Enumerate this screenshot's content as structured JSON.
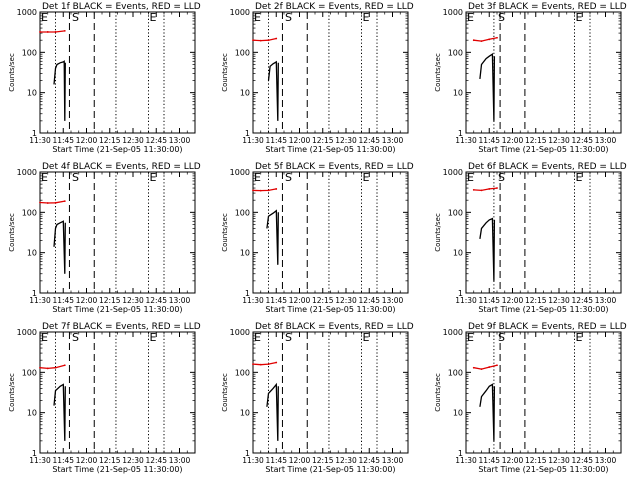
{
  "figure": {
    "shared": {
      "xlabel": "Start Time (21-Sep-05 11:30:00)",
      "ylabel": "Counts/sec",
      "x_tick_labels": [
        "11:30",
        "11:45",
        "12:00",
        "12:15",
        "12:30",
        "12:45",
        "13:00"
      ],
      "y_tick_labels": [
        "1",
        "10",
        "100",
        "1000"
      ],
      "marker_labels": {
        "start": "E",
        "S": "S",
        "end": "E"
      }
    },
    "colors": {
      "events": "#000000",
      "lld": "#e00000",
      "axes": "#000000"
    }
  },
  "chart_data": [
    {
      "type": "line",
      "title": "Det 1f BLACK = Events, RED = LLD",
      "x_unit": "minutes since 11:30",
      "xlim": [
        0,
        100
      ],
      "ylim": [
        1,
        1000
      ],
      "yscale": "log",
      "vlines": {
        "dotted": [
          10,
          49,
          70,
          80
        ],
        "dashed": [
          19,
          35
        ]
      },
      "labels_x": [
        0,
        20,
        70
      ],
      "series": [
        {
          "name": "LLD",
          "color": "#e00000",
          "values": [
            [
              0,
              320
            ],
            [
              5,
              320
            ],
            [
              10,
              320
            ],
            [
              16,
              340
            ]
          ]
        },
        {
          "name": "Events",
          "color": "#000000",
          "values": [
            [
              9,
              16
            ],
            [
              10,
              40
            ],
            [
              11,
              50
            ],
            [
              13,
              55
            ],
            [
              15,
              58
            ],
            [
              15.6,
              60
            ],
            [
              16,
              2
            ],
            [
              16.3,
              55
            ]
          ]
        }
      ]
    },
    {
      "type": "line",
      "title": "Det 2f BLACK = Events, RED = LLD",
      "x_unit": "minutes since 11:30",
      "xlim": [
        0,
        100
      ],
      "ylim": [
        1,
        1000
      ],
      "yscale": "log",
      "vlines": {
        "dotted": [
          10,
          49,
          70,
          80
        ],
        "dashed": [
          19,
          35
        ]
      },
      "labels_x": [
        0,
        20,
        70
      ],
      "series": [
        {
          "name": "LLD",
          "color": "#e00000",
          "values": [
            [
              0,
              200
            ],
            [
              5,
              195
            ],
            [
              10,
              200
            ],
            [
              15,
              220
            ]
          ]
        },
        {
          "name": "Events",
          "color": "#000000",
          "values": [
            [
              10,
              20
            ],
            [
              11,
              45
            ],
            [
              13,
              52
            ],
            [
              15,
              58
            ],
            [
              16,
              2
            ],
            [
              16.3,
              55
            ]
          ]
        }
      ]
    },
    {
      "type": "line",
      "title": "Det 3f BLACK = Events, RED = LLD",
      "x_unit": "minutes since 11:30",
      "xlim": [
        0,
        100
      ],
      "ylim": [
        1,
        1000
      ],
      "yscale": "log",
      "vlines": {
        "dotted": [
          18,
          70,
          80
        ],
        "dashed": [
          22,
          38
        ]
      },
      "labels_x": [
        0,
        20,
        70
      ],
      "series": [
        {
          "name": "LLD",
          "color": "#e00000",
          "values": [
            [
              5,
              200
            ],
            [
              10,
              190
            ],
            [
              15,
              210
            ],
            [
              20,
              230
            ]
          ]
        },
        {
          "name": "Events",
          "color": "#000000",
          "values": [
            [
              9,
              22
            ],
            [
              10,
              50
            ],
            [
              13,
              70
            ],
            [
              15,
              80
            ],
            [
              17,
              90
            ],
            [
              18,
              2
            ],
            [
              18.3,
              80
            ]
          ]
        }
      ]
    },
    {
      "type": "line",
      "title": "Det 4f BLACK = Events, RED = LLD",
      "x_unit": "minutes since 11:30",
      "xlim": [
        0,
        100
      ],
      "ylim": [
        1,
        1000
      ],
      "yscale": "log",
      "vlines": {
        "dotted": [
          10,
          49,
          70,
          80
        ],
        "dashed": [
          19,
          35
        ]
      },
      "labels_x": [
        0,
        20,
        70
      ],
      "series": [
        {
          "name": "LLD",
          "color": "#e00000",
          "values": [
            [
              0,
              175
            ],
            [
              5,
              170
            ],
            [
              10,
              172
            ],
            [
              16,
              190
            ]
          ]
        },
        {
          "name": "Events",
          "color": "#000000",
          "values": [
            [
              9,
              14
            ],
            [
              10,
              40
            ],
            [
              11,
              50
            ],
            [
              13,
              55
            ],
            [
              15,
              60
            ],
            [
              16,
              3
            ],
            [
              16.3,
              55
            ]
          ]
        }
      ]
    },
    {
      "type": "line",
      "title": "Det 5f BLACK = Events, RED = LLD",
      "x_unit": "minutes since 11:30",
      "xlim": [
        0,
        100
      ],
      "ylim": [
        1,
        1000
      ],
      "yscale": "log",
      "vlines": {
        "dotted": [
          10,
          49,
          70,
          80
        ],
        "dashed": [
          19,
          35
        ]
      },
      "labels_x": [
        0,
        20,
        70
      ],
      "series": [
        {
          "name": "LLD",
          "color": "#e00000",
          "values": [
            [
              0,
              350
            ],
            [
              5,
              345
            ],
            [
              10,
              350
            ],
            [
              15,
              380
            ]
          ]
        },
        {
          "name": "Events",
          "color": "#000000",
          "values": [
            [
              9,
              40
            ],
            [
              10,
              80
            ],
            [
              13,
              95
            ],
            [
              15,
              110
            ],
            [
              16,
              5
            ],
            [
              16.3,
              100
            ]
          ]
        }
      ]
    },
    {
      "type": "line",
      "title": "Det 6f BLACK = Events, RED = LLD",
      "x_unit": "minutes since 11:30",
      "xlim": [
        0,
        100
      ],
      "ylim": [
        1,
        1000
      ],
      "yscale": "log",
      "vlines": {
        "dotted": [
          18,
          70,
          80
        ],
        "dashed": [
          22,
          38
        ]
      },
      "labels_x": [
        0,
        20,
        70
      ],
      "series": [
        {
          "name": "LLD",
          "color": "#e00000",
          "values": [
            [
              5,
              360
            ],
            [
              10,
              350
            ],
            [
              15,
              380
            ],
            [
              20,
              400
            ]
          ]
        },
        {
          "name": "Events",
          "color": "#000000",
          "values": [
            [
              9,
              22
            ],
            [
              10,
              40
            ],
            [
              13,
              55
            ],
            [
              15,
              65
            ],
            [
              17,
              70
            ],
            [
              18,
              2
            ],
            [
              18.3,
              65
            ]
          ]
        }
      ]
    },
    {
      "type": "line",
      "title": "Det 7f BLACK = Events, RED = LLD",
      "x_unit": "minutes since 11:30",
      "xlim": [
        0,
        100
      ],
      "ylim": [
        1,
        1000
      ],
      "yscale": "log",
      "vlines": {
        "dotted": [
          10,
          49,
          70,
          80
        ],
        "dashed": [
          19,
          35
        ]
      },
      "labels_x": [
        0,
        20,
        70
      ],
      "series": [
        {
          "name": "LLD",
          "color": "#e00000",
          "values": [
            [
              0,
              130
            ],
            [
              5,
              125
            ],
            [
              10,
              130
            ],
            [
              16,
              150
            ]
          ]
        },
        {
          "name": "Events",
          "color": "#000000",
          "values": [
            [
              9,
              15
            ],
            [
              10,
              35
            ],
            [
              13,
              45
            ],
            [
              15,
              50
            ],
            [
              16,
              2
            ],
            [
              16.3,
              45
            ]
          ]
        }
      ]
    },
    {
      "type": "line",
      "title": "Det 8f BLACK = Events, RED = LLD",
      "x_unit": "minutes since 11:30",
      "xlim": [
        0,
        100
      ],
      "ylim": [
        1,
        1000
      ],
      "yscale": "log",
      "vlines": {
        "dotted": [
          10,
          49,
          70,
          80
        ],
        "dashed": [
          19,
          35
        ]
      },
      "labels_x": [
        0,
        20,
        70
      ],
      "series": [
        {
          "name": "LLD",
          "color": "#e00000",
          "values": [
            [
              0,
              160
            ],
            [
              5,
              155
            ],
            [
              10,
              160
            ],
            [
              15,
              175
            ]
          ]
        },
        {
          "name": "Events",
          "color": "#000000",
          "values": [
            [
              9,
              14
            ],
            [
              10,
              30
            ],
            [
              13,
              40
            ],
            [
              15,
              50
            ],
            [
              16,
              2
            ],
            [
              16.3,
              45
            ]
          ]
        }
      ]
    },
    {
      "type": "line",
      "title": "Det 9f BLACK = Events, RED = LLD",
      "x_unit": "minutes since 11:30",
      "xlim": [
        0,
        100
      ],
      "ylim": [
        1,
        1000
      ],
      "yscale": "log",
      "vlines": {
        "dotted": [
          18,
          70,
          80
        ],
        "dashed": [
          22,
          38
        ]
      },
      "labels_x": [
        0,
        20,
        70
      ],
      "series": [
        {
          "name": "LLD",
          "color": "#e00000",
          "values": [
            [
              5,
              130
            ],
            [
              10,
              120
            ],
            [
              15,
              135
            ],
            [
              20,
              150
            ]
          ]
        },
        {
          "name": "Events",
          "color": "#000000",
          "values": [
            [
              9,
              14
            ],
            [
              10,
              25
            ],
            [
              13,
              35
            ],
            [
              15,
              45
            ],
            [
              17,
              50
            ],
            [
              18,
              2
            ],
            [
              18.3,
              45
            ]
          ]
        }
      ]
    }
  ]
}
